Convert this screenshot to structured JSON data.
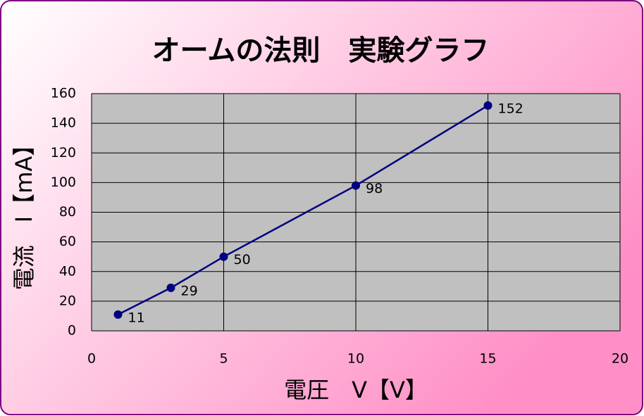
{
  "chart_data": {
    "type": "line",
    "title": "オームの法則　実験グラフ",
    "x_label": "電圧　V【V】",
    "y_label": "電流　I【mA】",
    "x": [
      1,
      3,
      5,
      10,
      15
    ],
    "series": [
      {
        "name": "I",
        "color": "#000080",
        "values": [
          11,
          29,
          50,
          98,
          152
        ]
      }
    ],
    "xlim": [
      0,
      20
    ],
    "xticks": [
      0,
      5,
      10,
      15,
      20
    ],
    "ylim": [
      0,
      160
    ],
    "yticks": [
      0,
      20,
      40,
      60,
      80,
      100,
      120,
      140,
      160
    ],
    "grid": true,
    "data_labels": true
  }
}
